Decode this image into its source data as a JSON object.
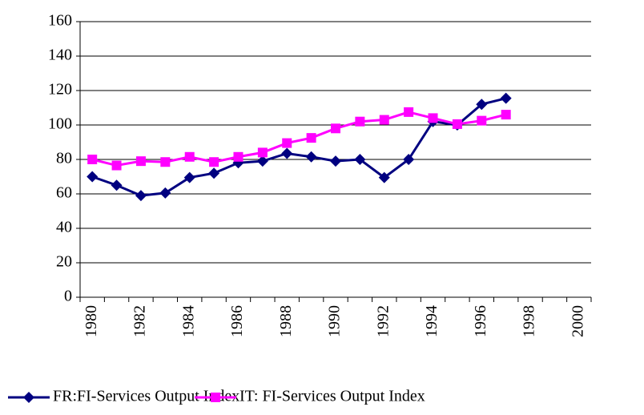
{
  "chart_data": {
    "type": "line",
    "categories": [
      "1980",
      null,
      "1982",
      null,
      "1984",
      null,
      "1986",
      null,
      "1988",
      null,
      "1990",
      null,
      "1992",
      null,
      "1994",
      null,
      "1996",
      null,
      "1998",
      null,
      "2000"
    ],
    "series": [
      {
        "name": "FR:FI-Services Output Index",
        "color": "#000080",
        "marker": "diamond",
        "values": [
          70,
          65,
          59,
          60.5,
          69.5,
          72,
          78,
          79,
          83.5,
          81.5,
          79,
          80,
          69.5,
          80,
          102,
          100,
          112,
          115.5,
          null,
          null,
          null
        ]
      },
      {
        "name": "IT: FI-Services Output Index",
        "color": "#ff00ff",
        "marker": "square",
        "values": [
          80,
          76.5,
          79,
          78.5,
          81.5,
          78.5,
          81.5,
          84,
          89.5,
          92.5,
          98,
          102,
          103,
          107.5,
          104,
          100.5,
          102.5,
          106,
          null,
          null,
          null
        ]
      }
    ],
    "ylim": [
      0,
      160
    ],
    "yticks": [
      0,
      20,
      40,
      60,
      80,
      100,
      120,
      140,
      160
    ],
    "grid": true,
    "legend": "bottom"
  }
}
